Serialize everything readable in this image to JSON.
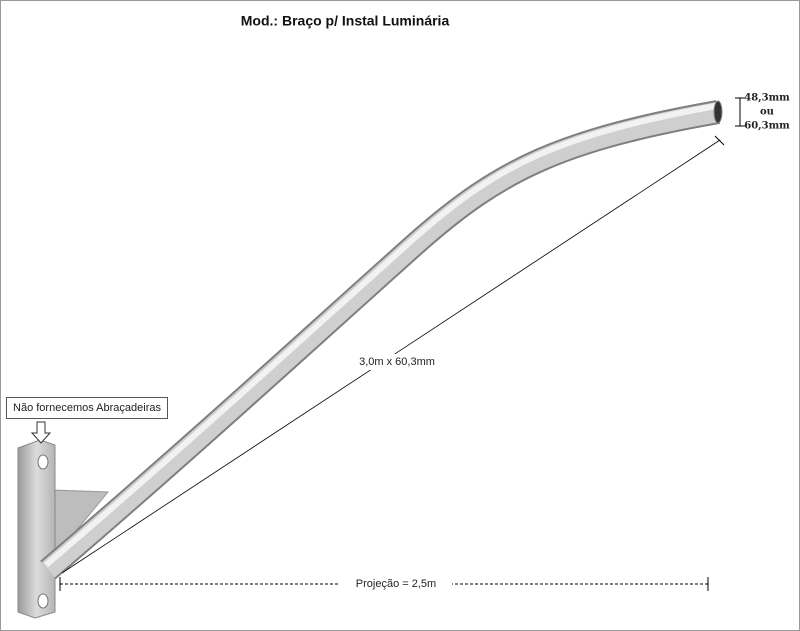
{
  "title": "Mod.: Braço p/ Instal Luminária",
  "diameter": {
    "lines": [
      "48,3mm",
      "ou",
      "60,3mm"
    ]
  },
  "length_label": "3,0m x 60,3mm",
  "note": "Não fornecemos Abraçadeiras",
  "projection_label": "Projeção = 2,5m"
}
